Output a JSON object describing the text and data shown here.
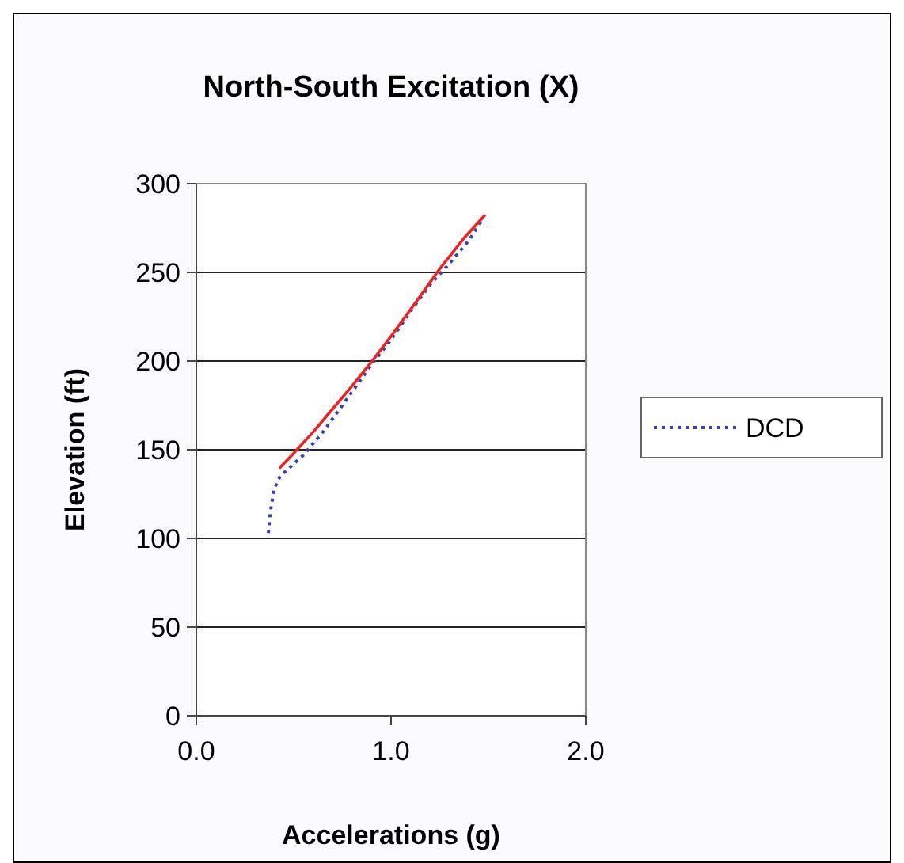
{
  "chart_data": {
    "type": "line",
    "title": "North-South Excitation (X)",
    "xlabel": "Accelerations (g)",
    "ylabel": "Elevation (ft)",
    "xlim": [
      0,
      2
    ],
    "xticks": [
      {
        "value": 0,
        "label": "0.0"
      },
      {
        "value": 1,
        "label": "1.0"
      },
      {
        "value": 2,
        "label": "2.0"
      }
    ],
    "ylim": [
      0,
      300
    ],
    "yticks": [
      0,
      50,
      100,
      150,
      200,
      250,
      300
    ],
    "grid": "y",
    "legend": "right",
    "marker": "none",
    "series": [
      {
        "name": "DCD",
        "color": "#3344aa",
        "line_style": "dotted",
        "x": [
          0.37,
          0.38,
          0.4,
          0.43,
          0.48,
          0.55,
          0.65,
          0.75,
          0.9,
          1.0,
          1.1,
          1.2,
          1.3,
          1.4,
          1.47
        ],
        "values": [
          103,
          115,
          128,
          135,
          140,
          147,
          160,
          175,
          198,
          212,
          228,
          243,
          255,
          268,
          280
        ]
      },
      {
        "color": "#ee2222",
        "line_style": "solid",
        "x": [
          0.43,
          0.5,
          0.6,
          0.7,
          0.8,
          0.91,
          1.0,
          1.1,
          1.25,
          1.38,
          1.48
        ],
        "values": [
          140,
          148,
          160,
          173,
          186,
          201,
          214,
          229,
          252,
          270,
          282
        ]
      }
    ]
  }
}
